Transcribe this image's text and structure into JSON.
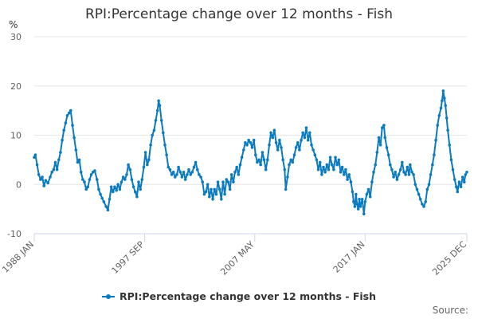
{
  "chart_data": {
    "type": "line",
    "title": "RPI:Percentage change over 12 months - Fish",
    "ylabel": "%",
    "xlabel": "",
    "ylim": [
      -10,
      30
    ],
    "y_ticks": [
      -10,
      0,
      10,
      20,
      30
    ],
    "x_start": 1988.0,
    "x_end": 2025.92,
    "x_ticks": [
      {
        "label": "1988 JAN",
        "x": 1988.0
      },
      {
        "label": "1997 SEP",
        "x": 1997.67
      },
      {
        "label": "2007 MAY",
        "x": 2007.33
      },
      {
        "label": "2017 JAN",
        "x": 2017.0
      },
      {
        "label": "2025 DEC",
        "x": 2025.92
      }
    ],
    "grid": true,
    "legend_position": "bottom-center",
    "series": [
      {
        "name": "RPI:Percentage change over 12 months - Fish",
        "color": "#0b7bc1",
        "points": [
          [
            1988.0,
            5.5
          ],
          [
            1988.1,
            6.0
          ],
          [
            1988.25,
            4.0
          ],
          [
            1988.4,
            2.0
          ],
          [
            1988.55,
            1.0
          ],
          [
            1988.7,
            1.5
          ],
          [
            1988.85,
            -0.3
          ],
          [
            1989.0,
            0.8
          ],
          [
            1989.2,
            0.3
          ],
          [
            1989.4,
            1.5
          ],
          [
            1989.55,
            2.5
          ],
          [
            1989.7,
            3.0
          ],
          [
            1989.85,
            4.5
          ],
          [
            1990.0,
            3.0
          ],
          [
            1990.15,
            5.0
          ],
          [
            1990.3,
            6.5
          ],
          [
            1990.45,
            9.0
          ],
          [
            1990.6,
            11.0
          ],
          [
            1990.75,
            12.5
          ],
          [
            1990.9,
            14.0
          ],
          [
            1991.05,
            14.5
          ],
          [
            1991.2,
            15.0
          ],
          [
            1991.35,
            12.0
          ],
          [
            1991.5,
            9.5
          ],
          [
            1991.65,
            7.0
          ],
          [
            1991.8,
            4.5
          ],
          [
            1991.95,
            5.0
          ],
          [
            1992.1,
            2.5
          ],
          [
            1992.25,
            1.0
          ],
          [
            1992.4,
            0.5
          ],
          [
            1992.55,
            -1.0
          ],
          [
            1992.7,
            -0.5
          ],
          [
            1992.85,
            1.0
          ],
          [
            1993.0,
            2.0
          ],
          [
            1993.15,
            2.5
          ],
          [
            1993.3,
            2.8
          ],
          [
            1993.5,
            1.0
          ],
          [
            1993.65,
            -1.0
          ],
          [
            1993.8,
            -2.0
          ],
          [
            1993.95,
            -2.8
          ],
          [
            1994.1,
            -3.5
          ],
          [
            1994.3,
            -4.5
          ],
          [
            1994.45,
            -5.2
          ],
          [
            1994.6,
            -3.0
          ],
          [
            1994.75,
            -0.5
          ],
          [
            1994.9,
            -1.5
          ],
          [
            1995.05,
            -0.5
          ],
          [
            1995.2,
            -1.2
          ],
          [
            1995.35,
            0.0
          ],
          [
            1995.5,
            -1.0
          ],
          [
            1995.65,
            0.5
          ],
          [
            1995.8,
            1.5
          ],
          [
            1995.95,
            1.0
          ],
          [
            1996.1,
            2.0
          ],
          [
            1996.25,
            4.0
          ],
          [
            1996.4,
            3.0
          ],
          [
            1996.55,
            1.0
          ],
          [
            1996.7,
            -0.5
          ],
          [
            1996.85,
            -1.5
          ],
          [
            1997.0,
            -2.5
          ],
          [
            1997.15,
            0.5
          ],
          [
            1997.3,
            -1.0
          ],
          [
            1997.45,
            1.0
          ],
          [
            1997.6,
            3.5
          ],
          [
            1997.75,
            6.5
          ],
          [
            1997.9,
            4.0
          ],
          [
            1998.05,
            5.0
          ],
          [
            1998.2,
            8.0
          ],
          [
            1998.35,
            10.0
          ],
          [
            1998.5,
            11.0
          ],
          [
            1998.65,
            13.0
          ],
          [
            1998.8,
            15.0
          ],
          [
            1998.9,
            17.0
          ],
          [
            1999.0,
            16.0
          ],
          [
            1999.15,
            13.0
          ],
          [
            1999.3,
            10.5
          ],
          [
            1999.45,
            8.0
          ],
          [
            1999.6,
            6.0
          ],
          [
            1999.75,
            3.5
          ],
          [
            1999.9,
            3.0
          ],
          [
            2000.05,
            2.0
          ],
          [
            2000.2,
            2.5
          ],
          [
            2000.35,
            1.5
          ],
          [
            2000.5,
            2.0
          ],
          [
            2000.65,
            3.5
          ],
          [
            2000.8,
            2.5
          ],
          [
            2000.95,
            1.5
          ],
          [
            2001.1,
            2.5
          ],
          [
            2001.25,
            1.0
          ],
          [
            2001.4,
            2.0
          ],
          [
            2001.55,
            3.0
          ],
          [
            2001.7,
            2.0
          ],
          [
            2001.85,
            2.5
          ],
          [
            2002.0,
            3.5
          ],
          [
            2002.15,
            4.5
          ],
          [
            2002.3,
            3.0
          ],
          [
            2002.45,
            2.0
          ],
          [
            2002.6,
            1.5
          ],
          [
            2002.75,
            0.5
          ],
          [
            2002.9,
            -2.0
          ],
          [
            2003.05,
            -1.5
          ],
          [
            2003.2,
            0.0
          ],
          [
            2003.35,
            -2.5
          ],
          [
            2003.5,
            -1.0
          ],
          [
            2003.65,
            -3.0
          ],
          [
            2003.8,
            -1.0
          ],
          [
            2003.95,
            -2.0
          ],
          [
            2004.1,
            0.5
          ],
          [
            2004.25,
            -1.0
          ],
          [
            2004.4,
            -3.0
          ],
          [
            2004.55,
            0.5
          ],
          [
            2004.7,
            -2.0
          ],
          [
            2004.85,
            1.0
          ],
          [
            2005.0,
            0.5
          ],
          [
            2005.15,
            -1.0
          ],
          [
            2005.3,
            2.0
          ],
          [
            2005.45,
            0.5
          ],
          [
            2005.6,
            2.5
          ],
          [
            2005.75,
            3.5
          ],
          [
            2005.9,
            2.0
          ],
          [
            2006.05,
            4.0
          ],
          [
            2006.2,
            5.5
          ],
          [
            2006.35,
            7.0
          ],
          [
            2006.5,
            8.5
          ],
          [
            2006.65,
            8.0
          ],
          [
            2006.8,
            9.0
          ],
          [
            2006.95,
            8.5
          ],
          [
            2007.1,
            7.5
          ],
          [
            2007.25,
            9.0
          ],
          [
            2007.4,
            6.0
          ],
          [
            2007.55,
            4.5
          ],
          [
            2007.7,
            5.0
          ],
          [
            2007.85,
            4.0
          ],
          [
            2008.0,
            6.5
          ],
          [
            2008.15,
            5.0
          ],
          [
            2008.3,
            3.0
          ],
          [
            2008.45,
            5.0
          ],
          [
            2008.6,
            8.0
          ],
          [
            2008.75,
            10.5
          ],
          [
            2008.9,
            9.5
          ],
          [
            2009.05,
            11.0
          ],
          [
            2009.2,
            8.5
          ],
          [
            2009.35,
            7.0
          ],
          [
            2009.5,
            9.0
          ],
          [
            2009.65,
            7.5
          ],
          [
            2009.8,
            5.0
          ],
          [
            2009.95,
            3.0
          ],
          [
            2010.05,
            -1.0
          ],
          [
            2010.2,
            1.5
          ],
          [
            2010.35,
            4.0
          ],
          [
            2010.5,
            5.0
          ],
          [
            2010.65,
            4.5
          ],
          [
            2010.8,
            6.0
          ],
          [
            2010.95,
            7.5
          ],
          [
            2011.1,
            8.5
          ],
          [
            2011.25,
            7.0
          ],
          [
            2011.4,
            9.0
          ],
          [
            2011.55,
            10.5
          ],
          [
            2011.7,
            9.5
          ],
          [
            2011.85,
            11.5
          ],
          [
            2012.0,
            9.0
          ],
          [
            2012.15,
            10.5
          ],
          [
            2012.3,
            8.0
          ],
          [
            2012.45,
            7.0
          ],
          [
            2012.6,
            6.0
          ],
          [
            2012.75,
            5.0
          ],
          [
            2012.9,
            3.0
          ],
          [
            2013.05,
            4.5
          ],
          [
            2013.2,
            2.0
          ],
          [
            2013.35,
            3.5
          ],
          [
            2013.5,
            2.5
          ],
          [
            2013.65,
            4.0
          ],
          [
            2013.8,
            3.0
          ],
          [
            2013.95,
            5.5
          ],
          [
            2014.1,
            4.0
          ],
          [
            2014.25,
            3.0
          ],
          [
            2014.4,
            5.5
          ],
          [
            2014.55,
            4.0
          ],
          [
            2014.7,
            5.0
          ],
          [
            2014.85,
            2.5
          ],
          [
            2015.0,
            3.5
          ],
          [
            2015.15,
            2.0
          ],
          [
            2015.3,
            3.0
          ],
          [
            2015.45,
            1.0
          ],
          [
            2015.6,
            2.0
          ],
          [
            2015.75,
            0.5
          ],
          [
            2015.9,
            -1.5
          ],
          [
            2016.0,
            -3.5
          ],
          [
            2016.1,
            -4.5
          ],
          [
            2016.2,
            -2.0
          ],
          [
            2016.3,
            -4.0
          ],
          [
            2016.4,
            -5.0
          ],
          [
            2016.5,
            -3.0
          ],
          [
            2016.6,
            -4.5
          ],
          [
            2016.75,
            -3.0
          ],
          [
            2016.9,
            -6.0
          ],
          [
            2017.0,
            -3.5
          ],
          [
            2017.15,
            -2.0
          ],
          [
            2017.3,
            -1.0
          ],
          [
            2017.45,
            -2.5
          ],
          [
            2017.6,
            0.5
          ],
          [
            2017.75,
            2.5
          ],
          [
            2017.9,
            4.0
          ],
          [
            2018.05,
            6.5
          ],
          [
            2018.2,
            9.5
          ],
          [
            2018.35,
            8.0
          ],
          [
            2018.5,
            11.5
          ],
          [
            2018.65,
            12.0
          ],
          [
            2018.75,
            9.5
          ],
          [
            2018.9,
            7.5
          ],
          [
            2019.05,
            6.0
          ],
          [
            2019.2,
            4.0
          ],
          [
            2019.35,
            3.0
          ],
          [
            2019.5,
            1.5
          ],
          [
            2019.65,
            2.5
          ],
          [
            2019.8,
            1.0
          ],
          [
            2019.95,
            2.0
          ],
          [
            2020.1,
            3.0
          ],
          [
            2020.25,
            4.5
          ],
          [
            2020.4,
            2.5
          ],
          [
            2020.55,
            2.0
          ],
          [
            2020.7,
            3.5
          ],
          [
            2020.85,
            2.0
          ],
          [
            2020.95,
            4.0
          ],
          [
            2021.1,
            2.5
          ],
          [
            2021.25,
            2.0
          ],
          [
            2021.4,
            0.0
          ],
          [
            2021.55,
            -1.0
          ],
          [
            2021.7,
            -2.0
          ],
          [
            2021.85,
            -3.0
          ],
          [
            2022.0,
            -4.0
          ],
          [
            2022.15,
            -4.5
          ],
          [
            2022.3,
            -3.5
          ],
          [
            2022.45,
            -1.0
          ],
          [
            2022.6,
            0.0
          ],
          [
            2022.75,
            2.0
          ],
          [
            2022.9,
            4.0
          ],
          [
            2023.05,
            6.0
          ],
          [
            2023.2,
            9.0
          ],
          [
            2023.35,
            12.0
          ],
          [
            2023.5,
            14.0
          ],
          [
            2023.65,
            15.5
          ],
          [
            2023.75,
            17.0
          ],
          [
            2023.85,
            19.0
          ],
          [
            2023.95,
            17.5
          ],
          [
            2024.05,
            16.0
          ],
          [
            2024.15,
            13.5
          ],
          [
            2024.25,
            11.0
          ],
          [
            2024.4,
            8.0
          ],
          [
            2024.55,
            5.0
          ],
          [
            2024.7,
            3.0
          ],
          [
            2024.85,
            1.0
          ],
          [
            2025.0,
            -0.5
          ],
          [
            2025.1,
            -1.5
          ],
          [
            2025.25,
            0.5
          ],
          [
            2025.4,
            -0.5
          ],
          [
            2025.55,
            1.5
          ],
          [
            2025.7,
            0.5
          ],
          [
            2025.8,
            2.0
          ],
          [
            2025.92,
            2.5
          ]
        ]
      }
    ]
  },
  "source_label": "Source:"
}
